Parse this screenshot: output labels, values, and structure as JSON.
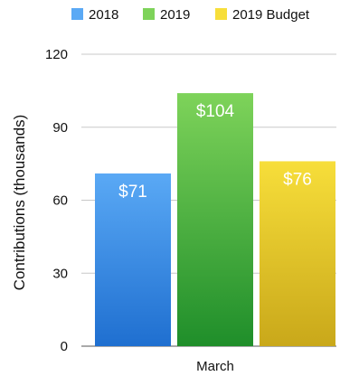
{
  "chart_data": {
    "type": "bar",
    "categories": [
      "March"
    ],
    "series": [
      {
        "name": "2018",
        "values": [
          71
        ],
        "label": "$71"
      },
      {
        "name": "2019",
        "values": [
          104
        ],
        "label": "$104"
      },
      {
        "name": "2019 Budget",
        "values": [
          76
        ],
        "label": "$76"
      }
    ],
    "title": "",
    "xlabel": "",
    "ylabel": "Contributions (thousands)",
    "ylim": [
      0,
      120
    ],
    "yticks": [
      0,
      30,
      60,
      90,
      120
    ],
    "grid": true,
    "legend_position": "top",
    "colors": {
      "2018": [
        "#5aa9f5",
        "#1f6fd0"
      ],
      "2019": [
        "#7ed35a",
        "#1f8e2a"
      ],
      "2019 Budget": [
        "#f7de3a",
        "#c9a81a"
      ]
    }
  }
}
